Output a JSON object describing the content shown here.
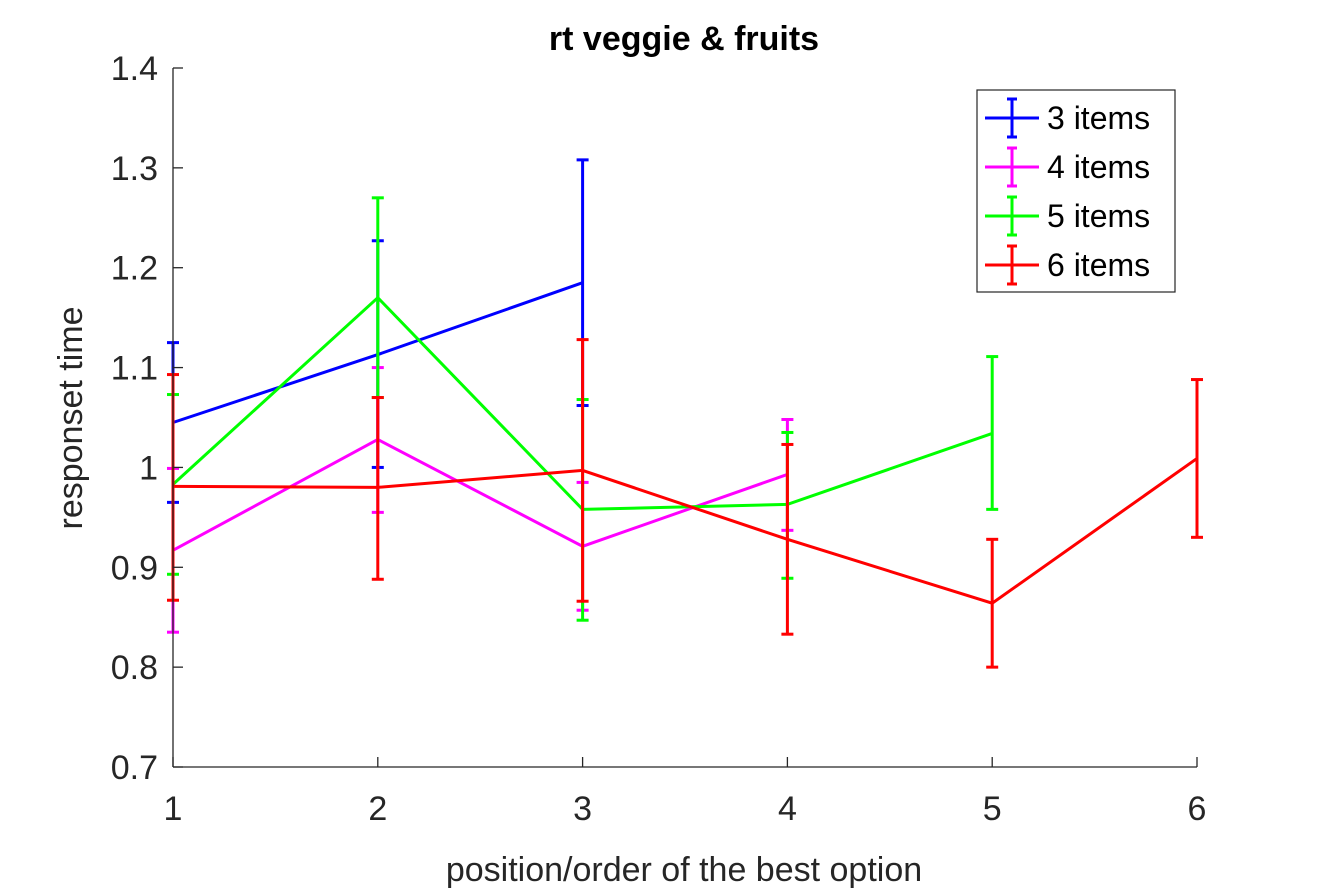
{
  "chart_data": {
    "type": "line",
    "title": "rt veggie & fruits",
    "xlabel": "position/order of the best option",
    "ylabel": "responset time",
    "xlim": [
      1,
      6
    ],
    "ylim": [
      0.7,
      1.4
    ],
    "xticks": [
      "1",
      "2",
      "3",
      "4",
      "5",
      "6"
    ],
    "yticks": [
      "0.7",
      "0.8",
      "0.9",
      "1",
      "1.1",
      "1.2",
      "1.3",
      "1.4"
    ],
    "grid": false,
    "legend_position": "top-right",
    "series": [
      {
        "name": "3 items",
        "color": "#0000ff",
        "x": [
          1,
          2,
          3
        ],
        "y": [
          1.045,
          1.113,
          1.185
        ],
        "err_low": [
          0.965,
          1.0,
          1.062
        ],
        "err_high": [
          1.125,
          1.227,
          1.308
        ]
      },
      {
        "name": "4 items",
        "color": "#ff00ff",
        "x": [
          1,
          2,
          3,
          4
        ],
        "y": [
          0.917,
          1.028,
          0.921,
          0.993
        ],
        "err_low": [
          0.835,
          0.955,
          0.857,
          0.937
        ],
        "err_high": [
          0.999,
          1.1,
          0.985,
          1.048
        ]
      },
      {
        "name": "5 items",
        "color": "#00ff00",
        "x": [
          1,
          2,
          3,
          4,
          5
        ],
        "y": [
          0.983,
          1.17,
          0.958,
          0.963,
          1.034
        ],
        "err_low": [
          0.893,
          1.07,
          0.847,
          0.889,
          0.958
        ],
        "err_high": [
          1.073,
          1.27,
          1.068,
          1.035,
          1.111
        ]
      },
      {
        "name": "6 items",
        "color": "#ff0000",
        "x": [
          1,
          2,
          3,
          4,
          5,
          6
        ],
        "y": [
          0.981,
          0.98,
          0.997,
          0.928,
          0.864,
          1.009
        ],
        "err_low": [
          0.867,
          0.888,
          0.866,
          0.833,
          0.8,
          0.93
        ],
        "err_high": [
          1.093,
          1.07,
          1.128,
          1.023,
          0.928,
          1.088
        ]
      }
    ]
  }
}
